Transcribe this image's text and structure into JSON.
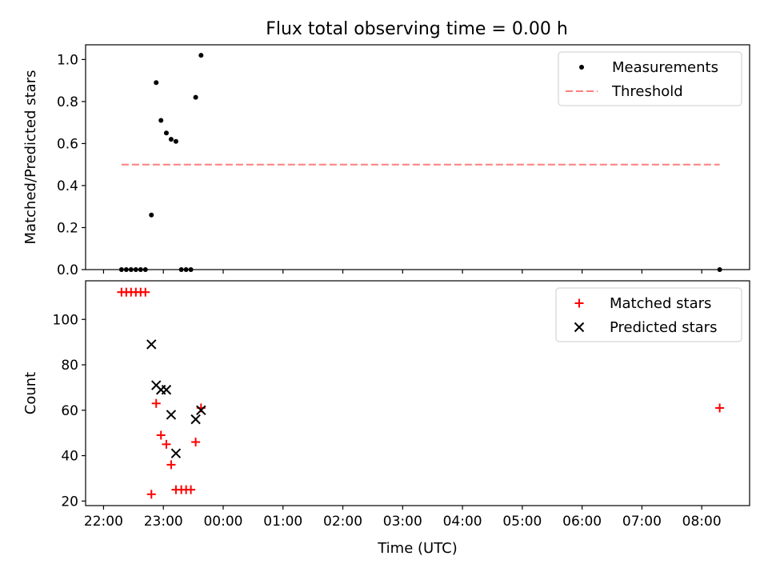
{
  "title": "Flux total observing time = 0.00 h",
  "chart_data": [
    {
      "type": "scatter",
      "panel": "top",
      "ylabel": "Matched/Predicted stars",
      "ylim": [
        0,
        1.07
      ],
      "yticks": [
        0.0,
        0.2,
        0.4,
        0.6,
        0.8,
        1.0
      ],
      "ytick_labels": [
        "0.0",
        "0.2",
        "0.4",
        "0.6",
        "0.8",
        "1.0"
      ],
      "xlim": [
        -0.3,
        10.8
      ],
      "legend": "top-right",
      "series": [
        {
          "name": "Measurements",
          "marker": "dot",
          "color": "#000000",
          "points": [
            [
              0.3,
              0
            ],
            [
              0.38,
              0
            ],
            [
              0.46,
              0
            ],
            [
              0.54,
              0
            ],
            [
              0.62,
              0
            ],
            [
              0.7,
              0
            ],
            [
              0.8,
              0.26
            ],
            [
              0.88,
              0.89
            ],
            [
              0.96,
              0.71
            ],
            [
              1.05,
              0.65
            ],
            [
              1.13,
              0.62
            ],
            [
              1.21,
              0.61
            ],
            [
              1.3,
              0
            ],
            [
              1.38,
              0
            ],
            [
              1.46,
              0
            ],
            [
              1.54,
              0.82
            ],
            [
              1.63,
              1.02
            ],
            [
              10.3,
              0
            ]
          ]
        },
        {
          "name": "Threshold",
          "line": "dashed",
          "color": "#ff7f7f",
          "points": [
            [
              0.3,
              0.5
            ],
            [
              10.3,
              0.5
            ]
          ]
        }
      ]
    },
    {
      "type": "scatter",
      "panel": "bottom",
      "xlabel": "Time (UTC)",
      "ylabel": "Count",
      "ylim": [
        18,
        117
      ],
      "yticks": [
        20,
        40,
        60,
        80,
        100
      ],
      "ytick_labels": [
        "20",
        "40",
        "60",
        "80",
        "100"
      ],
      "xlim": [
        -0.3,
        10.8
      ],
      "xticks": [
        0,
        1,
        2,
        3,
        4,
        5,
        6,
        7,
        8,
        9,
        10
      ],
      "xtick_labels": [
        "22:00",
        "23:00",
        "00:00",
        "01:00",
        "02:00",
        "03:00",
        "04:00",
        "05:00",
        "06:00",
        "07:00",
        "08:00"
      ],
      "legend": "top-right",
      "series": [
        {
          "name": "Matched stars",
          "marker": "plus",
          "color": "#ff0000",
          "points": [
            [
              0.3,
              112
            ],
            [
              0.38,
              112
            ],
            [
              0.46,
              112
            ],
            [
              0.54,
              112
            ],
            [
              0.62,
              112
            ],
            [
              0.7,
              112
            ],
            [
              0.8,
              23
            ],
            [
              0.88,
              63
            ],
            [
              0.96,
              49
            ],
            [
              1.05,
              45
            ],
            [
              1.13,
              36
            ],
            [
              1.21,
              25
            ],
            [
              1.3,
              25
            ],
            [
              1.38,
              25
            ],
            [
              1.46,
              25
            ],
            [
              1.54,
              46
            ],
            [
              1.63,
              61
            ],
            [
              10.3,
              61
            ]
          ]
        },
        {
          "name": "Predicted stars",
          "marker": "x",
          "color": "#000000",
          "points": [
            [
              0.8,
              89
            ],
            [
              0.88,
              71
            ],
            [
              0.96,
              69
            ],
            [
              1.05,
              69
            ],
            [
              1.13,
              58
            ],
            [
              1.21,
              41
            ],
            [
              1.54,
              56
            ],
            [
              1.63,
              60
            ]
          ]
        }
      ]
    }
  ]
}
